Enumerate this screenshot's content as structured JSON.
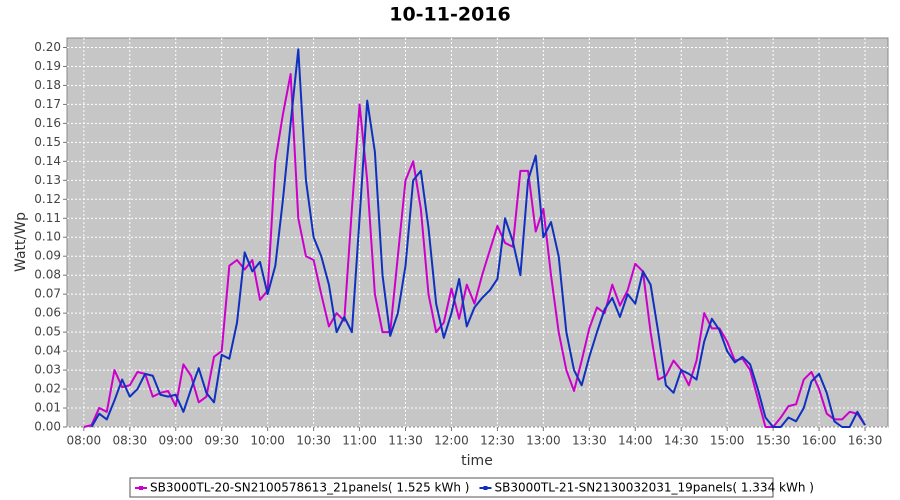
{
  "chart_data": {
    "type": "line",
    "title": "10-11-2016",
    "x_label": "time",
    "y_label": "Watt/Wp",
    "x": [
      "08:00",
      "08:05",
      "08:10",
      "08:15",
      "08:20",
      "08:25",
      "08:30",
      "08:35",
      "08:40",
      "08:45",
      "08:50",
      "08:55",
      "09:00",
      "09:05",
      "09:10",
      "09:15",
      "09:20",
      "09:25",
      "09:30",
      "09:35",
      "09:40",
      "09:45",
      "09:50",
      "09:55",
      "10:00",
      "10:05",
      "10:10",
      "10:15",
      "10:20",
      "10:25",
      "10:30",
      "10:35",
      "10:40",
      "10:45",
      "10:50",
      "10:55",
      "11:00",
      "11:05",
      "11:10",
      "11:15",
      "11:20",
      "11:25",
      "11:30",
      "11:35",
      "11:40",
      "11:45",
      "11:50",
      "11:55",
      "12:00",
      "12:05",
      "12:10",
      "12:15",
      "12:20",
      "12:25",
      "12:30",
      "12:35",
      "12:40",
      "12:45",
      "12:50",
      "12:55",
      "13:00",
      "13:05",
      "13:10",
      "13:15",
      "13:20",
      "13:25",
      "13:30",
      "13:35",
      "13:40",
      "13:45",
      "13:50",
      "13:55",
      "14:00",
      "14:05",
      "14:10",
      "14:15",
      "14:20",
      "14:25",
      "14:30",
      "14:35",
      "14:40",
      "14:45",
      "14:50",
      "14:55",
      "15:00",
      "15:05",
      "15:10",
      "15:15",
      "15:20",
      "15:25",
      "15:30",
      "15:35",
      "15:40",
      "15:45",
      "15:50",
      "15:55",
      "16:00",
      "16:05",
      "16:10",
      "16:15",
      "16:20",
      "16:25",
      "16:30"
    ],
    "series": [
      {
        "name": "SB3000TL-20-SN2100578613_21panels( 1.525 kWh )",
        "color": "#cc00cc",
        "values": [
          0,
          0.001,
          0.01,
          0.008,
          0.03,
          0.021,
          0.022,
          0.029,
          0.028,
          0.016,
          0.018,
          0.019,
          0.011,
          0.033,
          0.027,
          0.013,
          0.016,
          0.037,
          0.04,
          0.085,
          0.088,
          0.083,
          0.088,
          0.067,
          0.072,
          0.14,
          0.165,
          0.186,
          0.11,
          0.09,
          0.088,
          0.07,
          0.053,
          0.06,
          0.056,
          0.115,
          0.17,
          0.13,
          0.07,
          0.05,
          0.05,
          0.09,
          0.13,
          0.14,
          0.115,
          0.07,
          0.05,
          0.055,
          0.073,
          0.057,
          0.075,
          0.065,
          0.08,
          0.093,
          0.106,
          0.097,
          0.095,
          0.135,
          0.135,
          0.103,
          0.115,
          0.08,
          0.05,
          0.03,
          0.019,
          0.035,
          0.052,
          0.063,
          0.06,
          0.075,
          0.064,
          0.072,
          0.086,
          0.082,
          0.05,
          0.025,
          0.027,
          0.035,
          0.03,
          0.022,
          0.035,
          0.06,
          0.052,
          0.052,
          0.045,
          0.035,
          0.036,
          0.03,
          0.015,
          0,
          0,
          0.005,
          0.011,
          0.012,
          0.025,
          0.029,
          0.02,
          0.007,
          0.004,
          0.004,
          0.008,
          0.007,
          0.001
        ]
      },
      {
        "name": "SB3000TL-21-SN2130032031_19panels( 1.334 kWh )",
        "color": "#1030c0",
        "values": [
          null,
          0,
          0.007,
          0.004,
          0.014,
          0.025,
          0.016,
          0.02,
          0.028,
          0.027,
          0.017,
          0.016,
          0.017,
          0.008,
          0.02,
          0.031,
          0.018,
          0.013,
          0.038,
          0.036,
          0.055,
          0.092,
          0.082,
          0.087,
          0.07,
          0.085,
          0.12,
          0.16,
          0.199,
          0.13,
          0.1,
          0.09,
          0.075,
          0.05,
          0.058,
          0.05,
          0.11,
          0.172,
          0.145,
          0.08,
          0.048,
          0.06,
          0.085,
          0.13,
          0.135,
          0.105,
          0.065,
          0.047,
          0.06,
          0.078,
          0.053,
          0.063,
          0.068,
          0.072,
          0.078,
          0.11,
          0.098,
          0.08,
          0.13,
          0.143,
          0.1,
          0.108,
          0.09,
          0.05,
          0.03,
          0.022,
          0.037,
          0.05,
          0.062,
          0.068,
          0.058,
          0.07,
          0.065,
          0.082,
          0.075,
          0.05,
          0.022,
          0.018,
          0.03,
          0.028,
          0.025,
          0.045,
          0.057,
          0.051,
          0.04,
          0.034,
          0.037,
          0.033,
          0.02,
          0.005,
          0,
          0,
          0.005,
          0.003,
          0.01,
          0.024,
          0.028,
          0.018,
          0.003,
          0,
          0,
          0.008,
          0.001
        ]
      }
    ],
    "xlim": [
      "07:49",
      "16:45"
    ],
    "xticks": [
      "08:00",
      "08:30",
      "09:00",
      "09:30",
      "10:00",
      "10:30",
      "11:00",
      "11:30",
      "12:00",
      "12:30",
      "13:00",
      "13:30",
      "14:00",
      "14:30",
      "15:00",
      "15:30",
      "16:00",
      "16:30"
    ],
    "ylim": [
      0,
      0.205
    ],
    "yticks": [
      {
        "value": 0,
        "label": "0.00"
      },
      {
        "value": 0.01,
        "label": "0.01"
      },
      {
        "value": 0.02,
        "label": "0.02"
      },
      {
        "value": 0.03,
        "label": "0.03"
      },
      {
        "value": 0.04,
        "label": "0.04"
      },
      {
        "value": 0.05,
        "label": "0.05"
      },
      {
        "value": 0.06,
        "label": "0.06"
      },
      {
        "value": 0.07,
        "label": "0.07"
      },
      {
        "value": 0.08,
        "label": "0.08"
      },
      {
        "value": 0.09,
        "label": "0.09"
      },
      {
        "value": 0.1,
        "label": "0.10"
      },
      {
        "value": 0.11,
        "label": "0.11"
      },
      {
        "value": 0.12,
        "label": "0.12"
      },
      {
        "value": 0.13,
        "label": "0.13"
      },
      {
        "value": 0.14,
        "label": "0.14"
      },
      {
        "value": 0.15,
        "label": "0.15"
      },
      {
        "value": 0.16,
        "label": "0.16"
      },
      {
        "value": 0.17,
        "label": "0.17"
      },
      {
        "value": 0.18,
        "label": "0.18"
      },
      {
        "value": 0.19,
        "label": "0.19"
      },
      {
        "value": 0.2,
        "label": "0.20"
      }
    ],
    "grid": true
  }
}
